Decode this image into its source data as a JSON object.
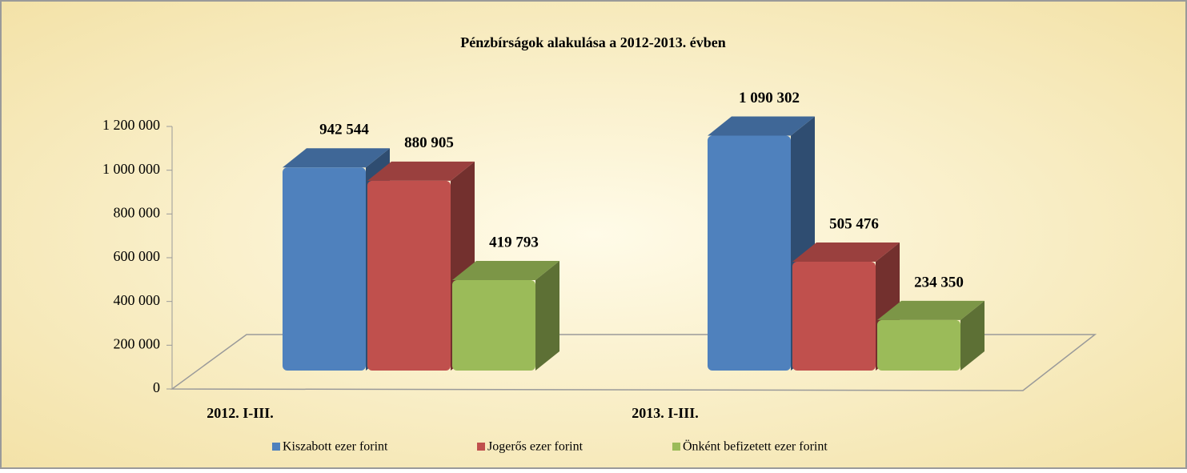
{
  "chart_data": {
    "type": "bar3d",
    "title": "Pénzbírságok alakulása a 2012-2013. évben",
    "categories": [
      "2012. I-III.",
      "2013. I-III."
    ],
    "series": [
      {
        "name": "Kiszabott ezer forint",
        "color": "#4f81bd",
        "values": [
          942544,
          1090302
        ],
        "value_labels": [
          "942 544",
          "1 090 302"
        ]
      },
      {
        "name": "Jogerős ezer forint",
        "color": "#c0504d",
        "values": [
          880905,
          505476
        ],
        "value_labels": [
          "880 905",
          "505 476"
        ]
      },
      {
        "name": "Önként befizetett ezer forint",
        "color": "#9bbb59",
        "values": [
          419793,
          234350
        ],
        "value_labels": [
          "419 793",
          "234 350"
        ]
      }
    ],
    "ylim": [
      0,
      1200000
    ],
    "yticks": [
      0,
      {
        "value": 200000,
        "label": "200 000"
      },
      {
        "value": 400000,
        "label": "400 000"
      },
      {
        "value": 600000,
        "label": "600 000"
      },
      {
        "value": 800000,
        "label": "800 000"
      },
      {
        "value": 1000000,
        "label": "1 000 000"
      },
      {
        "value": 1200000,
        "label": "1 200 000"
      }
    ],
    "legend": "bottom"
  }
}
